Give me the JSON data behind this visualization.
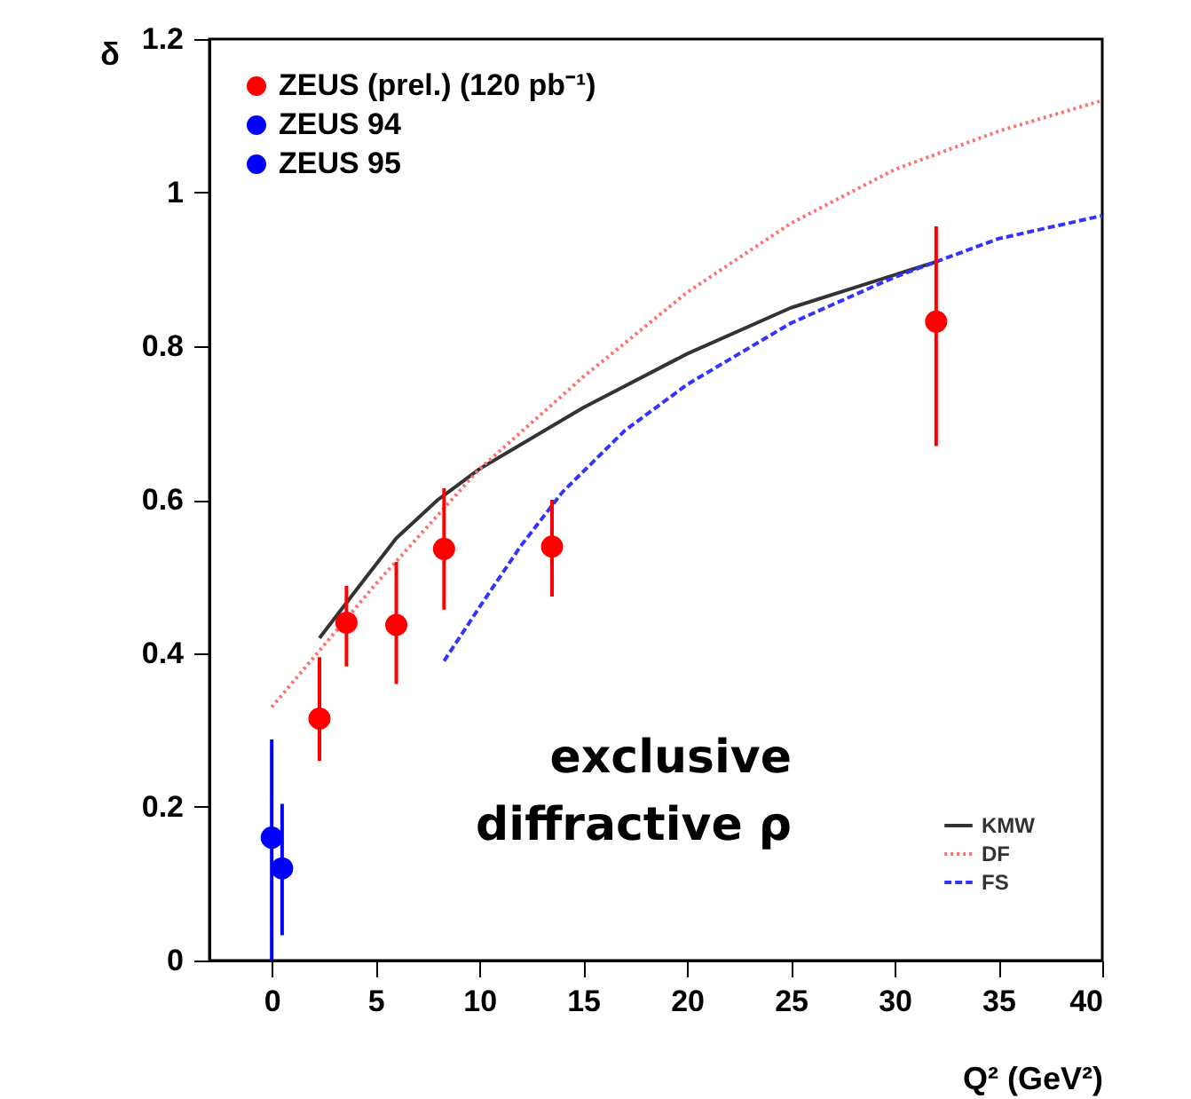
{
  "chart_data": {
    "type": "scatter",
    "ylabel": "δ",
    "xlabel": "Q² (GeV²)",
    "annotations": [
      "exclusive\ndiffractive ρ"
    ],
    "xlim": [
      -3,
      40
    ],
    "xticks": [
      0,
      5,
      10,
      15,
      20,
      25,
      30,
      35,
      40
    ],
    "ylim": [
      0,
      1.2
    ],
    "yticks": [
      0,
      0.2,
      0.4,
      0.6,
      0.8,
      1,
      1.2
    ],
    "legend": "top left",
    "marker": "circle",
    "series": [
      {
        "name": "ZEUS (prel.) (120 pb⁻¹)",
        "color": "#ff0000",
        "x": [
          2.3,
          3.6,
          6.0,
          8.3,
          13.5,
          32
        ],
        "values": [
          0.315,
          0.44,
          0.437,
          0.536,
          0.539,
          0.832
        ],
        "errors": [
          [
            0.26,
            0.395
          ],
          [
            0.383,
            0.488
          ],
          [
            0.36,
            0.519
          ],
          [
            0.457,
            0.615
          ],
          [
            0.474,
            0.6
          ],
          [
            0.67,
            0.956
          ]
        ]
      },
      {
        "name": "ZEUS 94",
        "color": "#0000ff",
        "x": [
          0
        ],
        "values": [
          0.16
        ],
        "errors": [
          [
            0,
            0.288
          ]
        ]
      },
      {
        "name": "ZEUS 95",
        "color": "#0000ff",
        "x": [
          0.5
        ],
        "values": [
          0.12
        ],
        "errors": [
          [
            0.033,
            0.204
          ]
        ]
      },
      {
        "name": "KMW",
        "color": "#333333",
        "type": "line",
        "marker": "none",
        "line_style": "solid",
        "x": [
          2.3,
          4,
          6,
          8,
          10,
          15,
          20,
          25,
          32
        ],
        "values": [
          0.42,
          0.48,
          0.55,
          0.6,
          0.64,
          0.72,
          0.79,
          0.85,
          0.91
        ]
      },
      {
        "name": "DF",
        "color": "#ff7070",
        "type": "line",
        "marker": "none",
        "line_style": "dotted",
        "x": [
          0,
          2.5,
          5,
          8,
          10,
          15,
          20,
          25,
          30,
          35,
          40
        ],
        "values": [
          0.33,
          0.41,
          0.49,
          0.58,
          0.64,
          0.76,
          0.87,
          0.96,
          1.03,
          1.08,
          1.12
        ]
      },
      {
        "name": "FS",
        "color": "#3333ff",
        "type": "line",
        "marker": "none",
        "line_style": "dashed",
        "x": [
          8.3,
          10,
          12,
          14,
          17,
          20,
          25,
          30,
          32,
          35,
          40
        ],
        "values": [
          0.39,
          0.46,
          0.54,
          0.61,
          0.69,
          0.75,
          0.83,
          0.89,
          0.91,
          0.94,
          0.97
        ]
      }
    ]
  }
}
